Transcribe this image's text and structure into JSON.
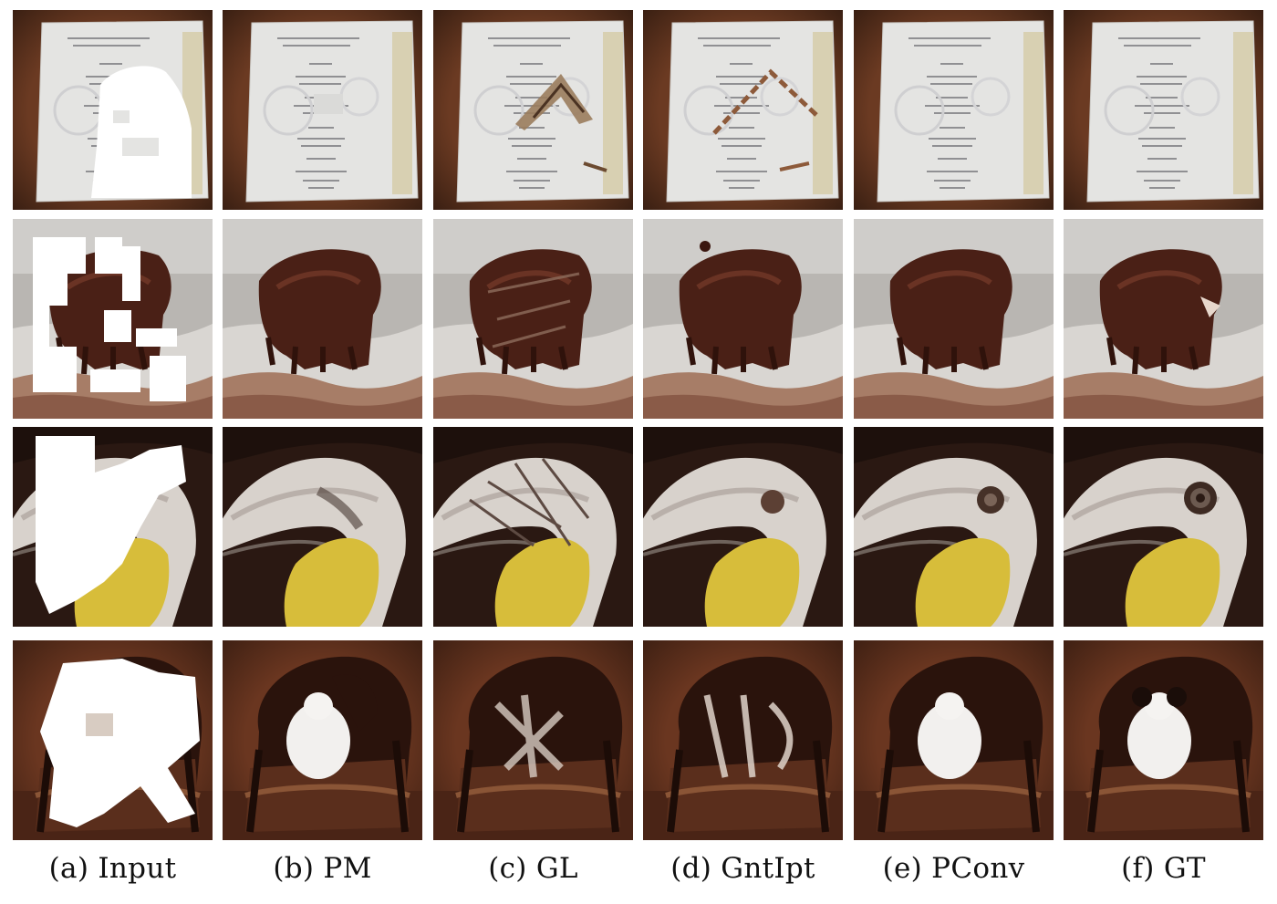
{
  "figure": {
    "columns": [
      {
        "key": "input",
        "caption": "(a) Input"
      },
      {
        "key": "pm",
        "caption": "(b) PM"
      },
      {
        "key": "gl",
        "caption": "(c) GL"
      },
      {
        "key": "gntipt",
        "caption": "(d) GntIpt"
      },
      {
        "key": "pconv",
        "caption": "(e) PConv"
      },
      {
        "key": "gt",
        "caption": "(f) GT"
      }
    ],
    "rows": [
      {
        "key": "menu"
      },
      {
        "key": "dog-in-surf"
      },
      {
        "key": "bird-beak"
      },
      {
        "key": "papillon-chair"
      }
    ]
  }
}
